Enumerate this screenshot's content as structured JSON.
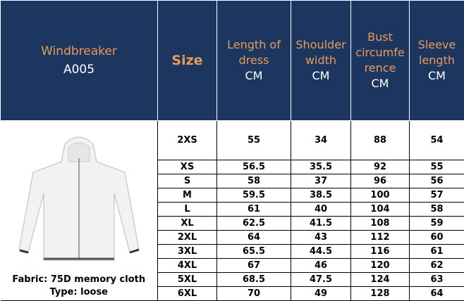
{
  "header": {
    "title": "Windbreaker",
    "code": "A005",
    "size_label": "Size",
    "columns": [
      {
        "lines": [
          "Length of",
          "dress"
        ],
        "unit": "CM"
      },
      {
        "lines": [
          "Shoulder",
          "width"
        ],
        "unit": "CM"
      },
      {
        "lines": [
          "Bust",
          "circumfe",
          "rence"
        ],
        "unit": "CM"
      },
      {
        "lines": [
          "Sleeve",
          "length"
        ],
        "unit": "CM"
      }
    ]
  },
  "product": {
    "fabric": "Fabric: 75D memory cloth",
    "type": "Type: loose"
  },
  "table": {
    "rows": [
      [
        "2XS",
        55,
        34,
        88,
        54
      ],
      [
        "XS",
        56.5,
        35.5,
        92,
        55
      ],
      [
        "S",
        58,
        37,
        96,
        56
      ],
      [
        "M",
        59.5,
        38.5,
        100,
        57
      ],
      [
        "L",
        61,
        40,
        104,
        58
      ],
      [
        "XL",
        62.5,
        41.5,
        108,
        59
      ],
      [
        "2XL",
        64,
        43,
        112,
        60
      ],
      [
        "3XL",
        65.5,
        44.5,
        116,
        61
      ],
      [
        "4XL",
        67,
        46,
        120,
        62
      ],
      [
        "5XL",
        68.5,
        47.5,
        124,
        63
      ],
      [
        "6XL",
        70,
        49,
        128,
        64
      ]
    ]
  }
}
